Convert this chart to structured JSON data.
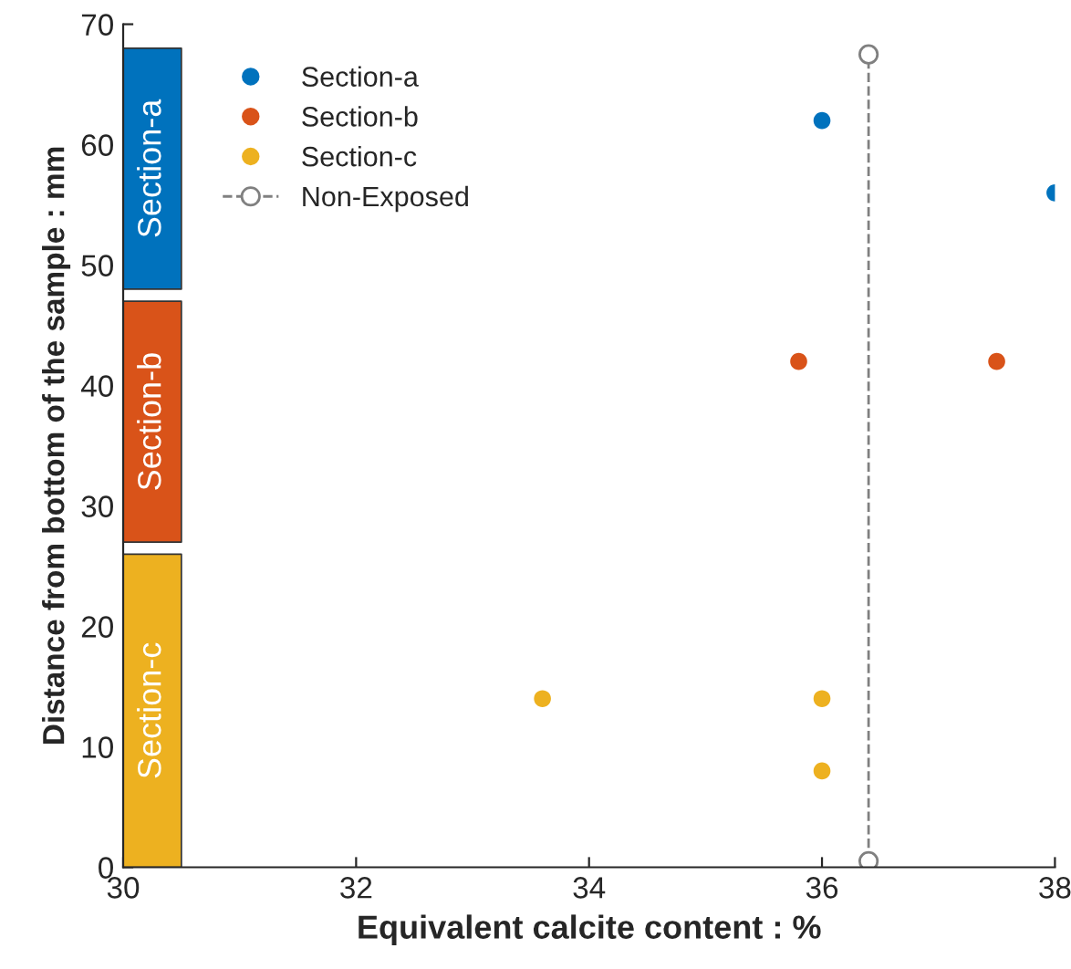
{
  "chart_data": {
    "type": "scatter",
    "xlabel": "Equivalent calcite content : %",
    "ylabel": "Distance from bottom of the sample : mm",
    "xlim": [
      30,
      38
    ],
    "xticks": [
      30,
      32,
      34,
      36,
      38
    ],
    "ylim": [
      0,
      70
    ],
    "yticks": [
      0,
      10,
      20,
      30,
      40,
      50,
      60,
      70
    ],
    "grid": false,
    "legend": "top left",
    "marker": "circle",
    "series": [
      {
        "name": "Section-a",
        "color": "#0072bd",
        "x": [
          36.0,
          38.0
        ],
        "values": [
          62,
          56
        ]
      },
      {
        "name": "Section-b",
        "color": "#d95319",
        "x": [
          35.8,
          37.5
        ],
        "values": [
          42,
          42
        ]
      },
      {
        "name": "Section-c",
        "color": "#edb120",
        "x": [
          33.6,
          36.0,
          36.0
        ],
        "values": [
          14,
          14,
          8
        ]
      },
      {
        "name": "Non-Exposed",
        "type": "line",
        "color": "#808080",
        "line_style": "dashed",
        "marker": "circle",
        "x": [
          36.4,
          36.4
        ],
        "values": [
          0.5,
          67.5
        ]
      }
    ],
    "bands": [
      {
        "axis": "y",
        "from": 48,
        "to": 68,
        "label": "Section-a",
        "color": "#0072bd"
      },
      {
        "axis": "y",
        "from": 27,
        "to": 47,
        "label": "Section-b",
        "color": "#d95319"
      },
      {
        "axis": "y",
        "from": 0,
        "to": 26,
        "label": "Section-c",
        "color": "#edb120"
      }
    ]
  }
}
